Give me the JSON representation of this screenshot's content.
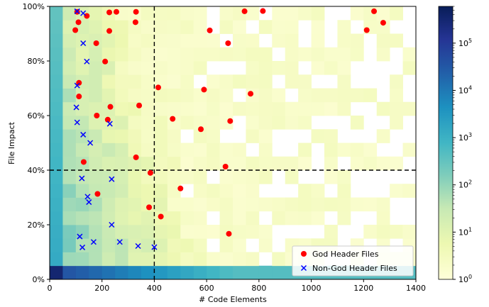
{
  "chart_data": {
    "type": "scatter",
    "xlabel": "# Code Elements",
    "ylabel": "File Impact",
    "xlim": [
      0,
      1400
    ],
    "ylim": [
      0,
      1
    ],
    "x_ticks": [
      0,
      200,
      400,
      600,
      800,
      1000,
      1200,
      1400
    ],
    "x_tick_labels": [
      "0",
      "200",
      "400",
      "600",
      "800",
      "1000",
      "1200",
      "1400"
    ],
    "y_ticks": [
      0,
      0.2,
      0.4,
      0.6,
      0.8,
      1.0
    ],
    "y_tick_labels": [
      "0%",
      "20%",
      "40%",
      "60%",
      "80%",
      "100%"
    ],
    "threshold_lines": {
      "x": 400,
      "y": 0.4
    },
    "background": {
      "type": "heatmap",
      "scale": "log",
      "colormap": "YlGnBu",
      "colorbar_range": [
        1,
        600000
      ],
      "colorbar_ticks": [
        1,
        10,
        100,
        1000,
        10000,
        100000
      ],
      "colorbar_tick_labels": [
        "10^0",
        "10^1",
        "10^2",
        "10^3",
        "10^4",
        "10^5"
      ]
    },
    "legend_position": "lower-right",
    "series": [
      {
        "name": "God Header Files",
        "marker": "circle",
        "color": "#ff0000",
        "points": [
          [
            105,
            0.98
          ],
          [
            142,
            0.965
          ],
          [
            228,
            0.978
          ],
          [
            255,
            0.98
          ],
          [
            330,
            0.98
          ],
          [
            745,
            0.982
          ],
          [
            815,
            0.983
          ],
          [
            1240,
            0.982
          ],
          [
            110,
            0.942
          ],
          [
            328,
            0.942
          ],
          [
            1275,
            0.94
          ],
          [
            98,
            0.913
          ],
          [
            228,
            0.91
          ],
          [
            612,
            0.912
          ],
          [
            1212,
            0.913
          ],
          [
            178,
            0.865
          ],
          [
            682,
            0.865
          ],
          [
            212,
            0.798
          ],
          [
            112,
            0.72
          ],
          [
            415,
            0.703
          ],
          [
            590,
            0.695
          ],
          [
            112,
            0.67
          ],
          [
            768,
            0.68
          ],
          [
            342,
            0.637
          ],
          [
            232,
            0.632
          ],
          [
            180,
            0.6
          ],
          [
            222,
            0.585
          ],
          [
            470,
            0.588
          ],
          [
            690,
            0.58
          ],
          [
            578,
            0.55
          ],
          [
            330,
            0.447
          ],
          [
            130,
            0.43
          ],
          [
            672,
            0.413
          ],
          [
            385,
            0.39
          ],
          [
            500,
            0.333
          ],
          [
            183,
            0.313
          ],
          [
            380,
            0.264
          ],
          [
            425,
            0.23
          ],
          [
            685,
            0.167
          ]
        ]
      },
      {
        "name": "Non-God Header Files",
        "marker": "x",
        "color": "#0000ff",
        "points": [
          [
            105,
            0.982
          ],
          [
            128,
            0.975
          ],
          [
            128,
            0.865
          ],
          [
            142,
            0.798
          ],
          [
            105,
            0.71
          ],
          [
            102,
            0.63
          ],
          [
            105,
            0.575
          ],
          [
            128,
            0.53
          ],
          [
            155,
            0.5
          ],
          [
            230,
            0.57
          ],
          [
            123,
            0.37
          ],
          [
            237,
            0.367
          ],
          [
            145,
            0.303
          ],
          [
            150,
            0.283
          ],
          [
            237,
            0.2
          ],
          [
            115,
            0.157
          ],
          [
            168,
            0.137
          ],
          [
            268,
            0.137
          ],
          [
            125,
            0.117
          ],
          [
            338,
            0.122
          ],
          [
            400,
            0.118
          ]
        ]
      }
    ]
  }
}
